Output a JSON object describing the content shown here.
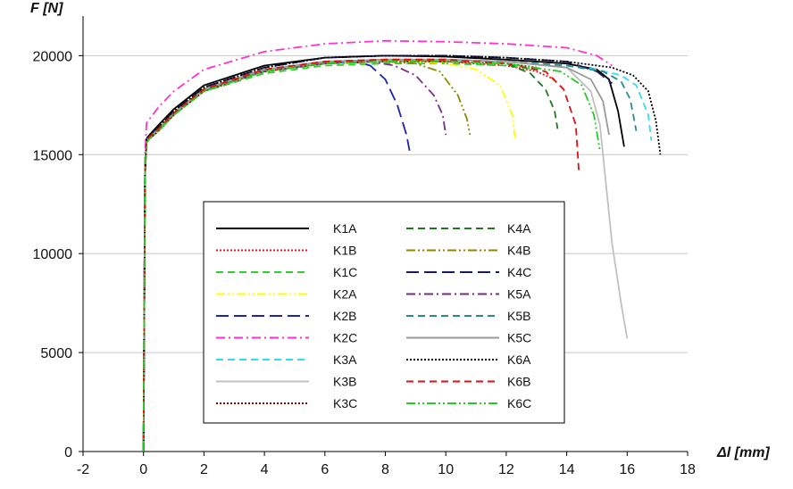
{
  "chart_data": {
    "type": "line",
    "title": "",
    "xlabel": "Δl [mm]",
    "ylabel": "F [N]",
    "xlim": [
      -2,
      18
    ],
    "ylim": [
      0,
      22000
    ],
    "x_ticks": [
      -2,
      0,
      2,
      4,
      6,
      8,
      10,
      12,
      14,
      16,
      18
    ],
    "y_ticks": [
      0,
      5000,
      10000,
      15000,
      20000
    ],
    "x_tick_labels": [
      "-2",
      "0",
      "2",
      "4",
      "6",
      "8",
      "10",
      "12",
      "14",
      "16",
      "18"
    ],
    "y_tick_labels": [
      "0",
      "5000",
      "10000",
      "15000",
      "20000"
    ],
    "grid": "horizontal",
    "legend_position": "center-left",
    "series": [
      {
        "name": "K1A",
        "color": "#000000",
        "dash": "solid",
        "x": [
          0,
          0.05,
          0.1,
          0.2,
          0.5,
          1,
          2,
          4,
          6,
          8,
          10,
          12,
          14,
          15,
          15.4,
          15.7,
          15.9
        ],
        "y": [
          0,
          14000,
          15800,
          16000,
          16500,
          17300,
          18500,
          19500,
          19900,
          20000,
          19950,
          19800,
          19600,
          19300,
          18800,
          17200,
          15400
        ]
      },
      {
        "name": "K1B",
        "color": "#e31a1c",
        "dash": "dot",
        "x": [
          0,
          0.05,
          0.1,
          0.2,
          0.5,
          1,
          2,
          4,
          6,
          8,
          10,
          12,
          13,
          13.6
        ],
        "y": [
          0,
          14000,
          15700,
          15900,
          16300,
          17100,
          18300,
          19300,
          19700,
          19800,
          19700,
          19500,
          19200,
          18800
        ]
      },
      {
        "name": "K1C",
        "color": "#33cc33",
        "dash": "dash",
        "x": [
          0,
          0.05,
          0.1,
          0.2,
          0.5,
          1,
          2,
          4,
          6,
          8,
          10,
          12,
          13
        ],
        "y": [
          0,
          14000,
          15600,
          15800,
          16200,
          17000,
          18200,
          19100,
          19500,
          19600,
          19600,
          19500,
          19300
        ]
      },
      {
        "name": "K2A",
        "color": "#ffff00",
        "dash": "dashdotdot",
        "x": [
          0,
          0.05,
          0.1,
          0.2,
          0.5,
          1,
          2,
          4,
          6,
          8,
          9,
          10,
          11,
          11.8,
          12.2,
          12.3
        ],
        "y": [
          0,
          14000,
          15700,
          15900,
          16300,
          17100,
          18300,
          19200,
          19600,
          19700,
          19700,
          19600,
          19300,
          18500,
          17000,
          15700
        ]
      },
      {
        "name": "K2B",
        "color": "#1f24a8",
        "dash": "longdash",
        "x": [
          0,
          0.05,
          0.1,
          0.2,
          0.5,
          1,
          2,
          4,
          6,
          7,
          7.5,
          8,
          8.4,
          8.7,
          8.8
        ],
        "y": [
          0,
          14000,
          15700,
          15900,
          16300,
          17100,
          18300,
          19200,
          19600,
          19700,
          19500,
          18800,
          17500,
          16000,
          15200
        ]
      },
      {
        "name": "K2C",
        "color": "#ff33cc",
        "dash": "dashdot",
        "x": [
          0,
          0.05,
          0.1,
          0.2,
          0.5,
          1,
          2,
          4,
          6,
          8,
          10,
          12,
          14,
          15,
          15.5
        ],
        "y": [
          0,
          15000,
          16600,
          16800,
          17400,
          18200,
          19300,
          20200,
          20600,
          20750,
          20700,
          20600,
          20400,
          20000,
          19500
        ]
      },
      {
        "name": "K3A",
        "color": "#33ddee",
        "dash": "dash",
        "x": [
          0,
          0.05,
          0.1,
          0.2,
          0.5,
          1,
          2,
          4,
          6,
          8,
          10,
          12,
          14,
          15,
          15.8,
          16.3,
          16.7,
          16.8
        ],
        "y": [
          0,
          14000,
          15700,
          15900,
          16300,
          17100,
          18300,
          19300,
          19700,
          19800,
          19800,
          19700,
          19500,
          19300,
          19000,
          18500,
          17000,
          15700
        ]
      },
      {
        "name": "K3B",
        "color": "#c0c0c0",
        "dash": "solid",
        "x": [
          0,
          0.05,
          0.1,
          0.2,
          0.5,
          1,
          2,
          4,
          6,
          8,
          10,
          12,
          14,
          14.8,
          15.1,
          15.3,
          15.5,
          15.8,
          16.0
        ],
        "y": [
          0,
          14000,
          15700,
          15900,
          16300,
          17100,
          18300,
          19300,
          19700,
          19800,
          19800,
          19700,
          19400,
          18200,
          16500,
          13500,
          10500,
          7500,
          5700
        ]
      },
      {
        "name": "K3C",
        "color": "#8b0000",
        "dash": "dot",
        "x": [
          0,
          0.05,
          0.1,
          0.2,
          0.5,
          1,
          2,
          4,
          6,
          8,
          10,
          12,
          13
        ],
        "y": [
          0,
          14000,
          15600,
          15800,
          16200,
          17000,
          18200,
          19200,
          19600,
          19700,
          19700,
          19600,
          19400
        ]
      },
      {
        "name": "K4A",
        "color": "#1f7a1f",
        "dash": "dash",
        "x": [
          0,
          0.05,
          0.1,
          0.2,
          0.5,
          1,
          2,
          4,
          6,
          8,
          10,
          12,
          12.8,
          13.3,
          13.6,
          13.7
        ],
        "y": [
          0,
          14000,
          15700,
          15900,
          16300,
          17100,
          18300,
          19300,
          19700,
          19800,
          19800,
          19600,
          19100,
          18300,
          17200,
          16300
        ]
      },
      {
        "name": "K4B",
        "color": "#8a8a00",
        "dash": "dashdotdot",
        "x": [
          0,
          0.05,
          0.1,
          0.2,
          0.5,
          1,
          2,
          4,
          6,
          8,
          9,
          9.8,
          10.4,
          10.7,
          10.8
        ],
        "y": [
          0,
          14000,
          15700,
          15900,
          16300,
          17100,
          18300,
          19200,
          19600,
          19700,
          19600,
          19200,
          18000,
          16800,
          16000
        ]
      },
      {
        "name": "K4C",
        "color": "#1a1a5e",
        "dash": "longdash",
        "x": [
          0,
          0.05,
          0.1,
          0.2,
          0.5,
          1,
          2,
          4,
          6,
          8,
          10,
          12,
          14,
          15,
          15.5
        ],
        "y": [
          0,
          14000,
          15800,
          16000,
          16400,
          17200,
          18400,
          19400,
          19900,
          20000,
          20000,
          19900,
          19700,
          19200,
          18600
        ]
      },
      {
        "name": "K5A",
        "color": "#7a2a8a",
        "dash": "dashdot",
        "x": [
          0,
          0.05,
          0.1,
          0.2,
          0.5,
          1,
          2,
          4,
          6,
          7.5,
          8.3,
          9.0,
          9.6,
          9.9,
          10.0
        ],
        "y": [
          0,
          14000,
          15700,
          15900,
          16300,
          17100,
          18300,
          19200,
          19600,
          19700,
          19500,
          19000,
          18000,
          17000,
          16000
        ]
      },
      {
        "name": "K5B",
        "color": "#2a8a8a",
        "dash": "dash",
        "x": [
          0,
          0.05,
          0.1,
          0.2,
          0.5,
          1,
          2,
          4,
          6,
          8,
          10,
          12,
          14,
          15.2,
          15.8,
          16.1,
          16.3
        ],
        "y": [
          0,
          14000,
          15700,
          15900,
          16300,
          17100,
          18300,
          19300,
          19700,
          19800,
          19800,
          19700,
          19500,
          19200,
          18700,
          17800,
          16200
        ]
      },
      {
        "name": "K5C",
        "color": "#999999",
        "dash": "solid",
        "x": [
          0,
          0.05,
          0.1,
          0.2,
          0.5,
          1,
          2,
          4,
          6,
          8,
          10,
          12,
          14,
          14.8,
          15.2,
          15.4
        ],
        "y": [
          0,
          14000,
          15700,
          15900,
          16300,
          17100,
          18300,
          19300,
          19700,
          19800,
          19800,
          19700,
          19400,
          18800,
          17700,
          16000
        ]
      },
      {
        "name": "K6A",
        "color": "#000000",
        "dash": "dot",
        "x": [
          0,
          0.05,
          0.1,
          0.2,
          0.5,
          1,
          2,
          4,
          6,
          8,
          10,
          12,
          14,
          15.5,
          16.2,
          16.7,
          16.95,
          17.1
        ],
        "y": [
          0,
          14000,
          15800,
          16000,
          16400,
          17200,
          18400,
          19400,
          19900,
          20000,
          20000,
          19900,
          19700,
          19400,
          19000,
          18200,
          16700,
          15000
        ]
      },
      {
        "name": "K6B",
        "color": "#dd1111",
        "dash": "dash",
        "x": [
          0,
          0.05,
          0.1,
          0.2,
          0.5,
          1,
          2,
          4,
          6,
          8,
          10,
          12,
          13.3,
          13.9,
          14.3,
          14.4
        ],
        "y": [
          0,
          14000,
          15700,
          15900,
          16300,
          17100,
          18300,
          19300,
          19700,
          19800,
          19800,
          19600,
          19200,
          18300,
          16500,
          14200
        ]
      },
      {
        "name": "K6C",
        "color": "#22cc22",
        "dash": "dashdotdot",
        "x": [
          0,
          0.05,
          0.1,
          0.2,
          0.5,
          1,
          2,
          4,
          6,
          8,
          10,
          12,
          13.8,
          14.5,
          14.9,
          15.1
        ],
        "y": [
          0,
          14000,
          15600,
          15800,
          16200,
          17000,
          18200,
          19200,
          19600,
          19700,
          19700,
          19600,
          19200,
          18500,
          17000,
          15200
        ]
      }
    ]
  }
}
